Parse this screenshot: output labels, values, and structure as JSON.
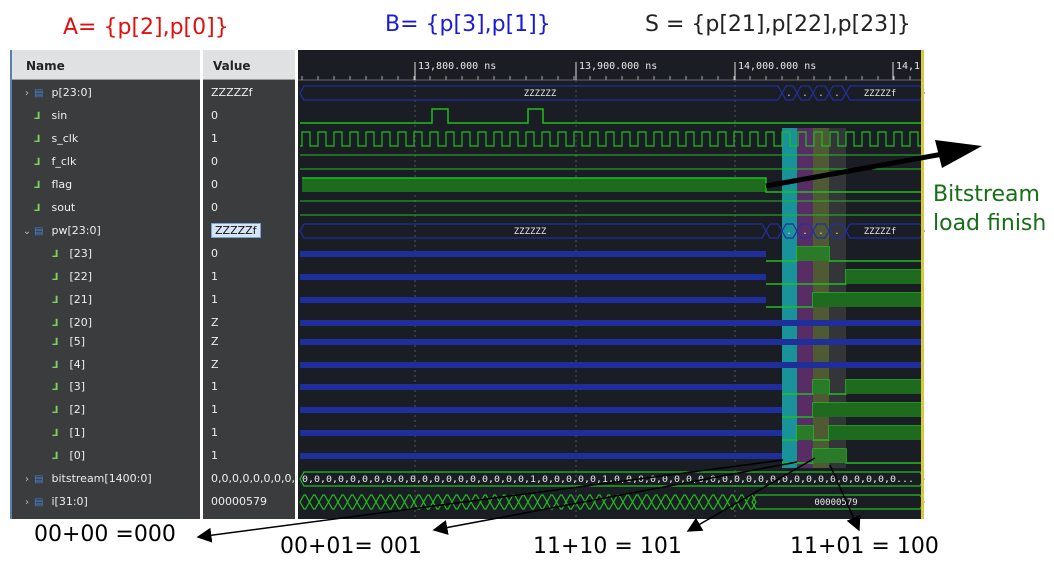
{
  "annotations": {
    "a_def": "A= {p[2],p[0]}",
    "b_def": "B= {p[3],p[1]}",
    "s_def": "S = {p[21],p[22],p[23]}",
    "bitstream_load": "Bitstream load finish",
    "result_0": "00+00 =000",
    "result_1": "00+01= 001",
    "result_2": "11+10 = 101",
    "result_3": "11+01 = 100"
  },
  "annotation_colors": {
    "a": "#e01010",
    "b": "#1a1ad6",
    "s": "#222222",
    "bitstream": "#157015",
    "result": "#000000"
  },
  "columns": {
    "name": "Name",
    "value": "Value"
  },
  "signals": [
    {
      "name": "p[23:0]",
      "value": "ZZZZZf",
      "type": "bus",
      "expandable": true
    },
    {
      "name": "sin",
      "value": "0",
      "type": "bit"
    },
    {
      "name": "s_clk",
      "value": "1",
      "type": "bit"
    },
    {
      "name": "f_clk",
      "value": "0",
      "type": "bit"
    },
    {
      "name": "flag",
      "value": "0",
      "type": "bit"
    },
    {
      "name": "sout",
      "value": "0",
      "type": "bit"
    },
    {
      "name": "pw[23:0]",
      "value": "ZZZZZf",
      "type": "bus",
      "expanded": true,
      "selected": true
    },
    {
      "name": "[23]",
      "value": "0",
      "type": "bit",
      "child": true
    },
    {
      "name": "[22]",
      "value": "1",
      "type": "bit",
      "child": true
    },
    {
      "name": "[21]",
      "value": "1",
      "type": "bit",
      "child": true
    },
    {
      "name": "[20]",
      "value": "Z",
      "type": "bit",
      "child": true
    },
    {
      "name": "[5]",
      "value": "Z",
      "type": "bit",
      "child": true
    },
    {
      "name": "[4]",
      "value": "Z",
      "type": "bit",
      "child": true
    },
    {
      "name": "[3]",
      "value": "1",
      "type": "bit",
      "child": true
    },
    {
      "name": "[2]",
      "value": "1",
      "type": "bit",
      "child": true
    },
    {
      "name": "[1]",
      "value": "1",
      "type": "bit",
      "child": true
    },
    {
      "name": "[0]",
      "value": "1",
      "type": "bit",
      "child": true
    },
    {
      "name": "bitstream[1400:0]",
      "value": "0,0,0,0,0,0,0,0,0",
      "type": "bus",
      "expandable": true
    },
    {
      "name": "i[31:0]",
      "value": "00000579",
      "type": "bus",
      "expandable": true
    }
  ],
  "timeline": {
    "ticks": [
      "13,800.000 ns",
      "13,900.000 ns",
      "14,000.000 ns",
      "14,1"
    ]
  },
  "wave_labels": {
    "p_bus": "ZZZZZZ",
    "p_bus_end": "ZZZZZf",
    "pw_bus": "ZZZZZZ",
    "pw_bus_end": "ZZZZZf",
    "bitstream_values": "0,0,0,0,0,0,0,0,0,0,0,0,0,0,0,0,0,0,0,1,0,0,0,0,0,1,0,0,0,0,0,0,0,0,0,0,0,0,0,0,0,0,0,0,0,0,0,0,0,0...",
    "i_value": "00000579",
    "dots": "."
  },
  "colors": {
    "panel_bg": "#3a3c3e",
    "wave_bg": "#1b1d24",
    "bus_blue": "#2030a0",
    "bit_green": "#1fbf1f",
    "highlight_cyan": "#1ab0b8",
    "highlight_purple": "#8a3b9a",
    "highlight_olive": "#7a8a40",
    "highlight_gray": "#5a5a5a"
  },
  "icons": {
    "bus_icon": "bus-icon",
    "bit_icon": "wire-icon",
    "expand_icon": "chevron-right-icon",
    "collapse_icon": "chevron-down-icon"
  }
}
